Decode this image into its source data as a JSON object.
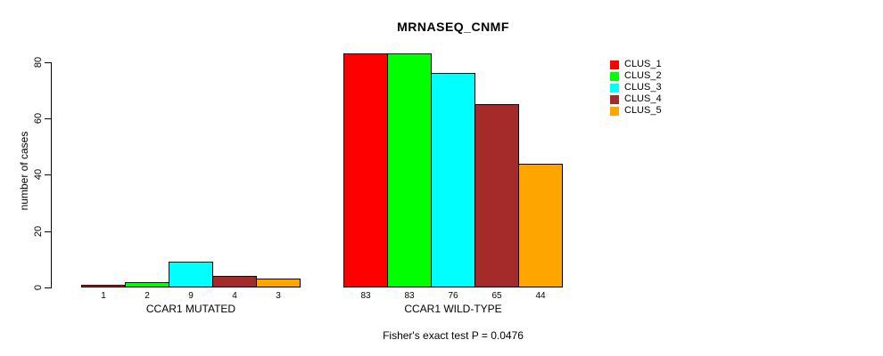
{
  "title": "MRNASEQ_CNMF",
  "chart_data": {
    "type": "bar",
    "title": "MRNASEQ_CNMF",
    "xlabel": "",
    "ylabel": "number of cases",
    "ylim": [
      0,
      80
    ],
    "yticks": [
      0,
      20,
      40,
      60,
      80
    ],
    "grid": false,
    "legend_position": "right",
    "bar_border_color": "#000000",
    "categories": [
      "CCAR1 MUTATED",
      "CCAR1 WILD-TYPE"
    ],
    "series": [
      {
        "name": "CLUS_1",
        "color": "#ff0000",
        "values": [
          1,
          83
        ]
      },
      {
        "name": "CLUS_2",
        "color": "#00ff00",
        "values": [
          2,
          83
        ]
      },
      {
        "name": "CLUS_3",
        "color": "#00ffff",
        "values": [
          9,
          76
        ]
      },
      {
        "name": "CLUS_4",
        "color": "#a52a2a",
        "values": [
          4,
          65
        ]
      },
      {
        "name": "CLUS_5",
        "color": "#ffa500",
        "values": [
          3,
          44
        ]
      }
    ],
    "annotation": "Fisher's exact test P = 0.0476"
  }
}
